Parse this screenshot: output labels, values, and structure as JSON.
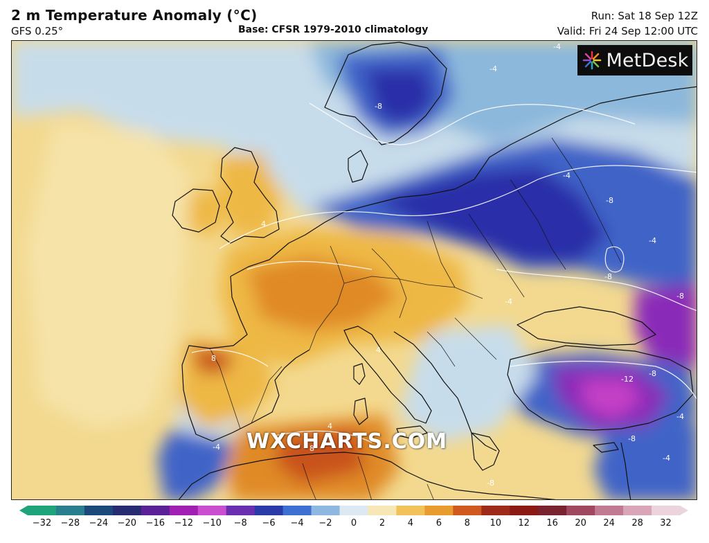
{
  "header": {
    "title": "2 m Temperature Anomaly (°C)",
    "model": "GFS 0.25°",
    "base": "Base: CFSR 1979-2010 climatology",
    "run": "Run: Sat 18 Sep 12Z",
    "valid": "Valid: Fri 24 Sep 12:00 UTC"
  },
  "brand": {
    "name": "MetDesk",
    "icon": "metdesk-star-icon"
  },
  "watermark": "WXCHARTS.COM",
  "map": {
    "contour_labels": [
      "4",
      "-4",
      "-4",
      "-4",
      "-8",
      "-8",
      "-8",
      "-4",
      "-8",
      "-12",
      "-8",
      "-8",
      "-4",
      "-4",
      "-8",
      "4",
      "8",
      "-4",
      "-4",
      "4",
      "8"
    ],
    "colors": {
      "warm_pale": "#f3d98f",
      "warm": "#eeb844",
      "warm_strong": "#e08a26",
      "hot": "#c9521c",
      "cool_pale": "#c7dcea",
      "cool": "#8cb8dc",
      "cold": "#3f63c8",
      "very_cold": "#2b2fa8",
      "extreme_cold": "#8a2bb8",
      "extreme_cold_2": "#c540c6"
    }
  },
  "colorbar": {
    "ticks": [
      "−32",
      "−28",
      "−24",
      "−20",
      "−16",
      "−12",
      "−10",
      "−8",
      "−6",
      "−4",
      "−2",
      "0",
      "2",
      "4",
      "6",
      "8",
      "10",
      "12",
      "16",
      "20",
      "24",
      "28",
      "32"
    ],
    "colors": [
      "#1fa37a",
      "#2a7f8f",
      "#1b4a7a",
      "#272c72",
      "#5a2296",
      "#a11fb2",
      "#c94fd0",
      "#6a2fb0",
      "#2a3aa8",
      "#3e6fd2",
      "#8fb8e0",
      "#dce9f3",
      "#f7e7b6",
      "#f1c25a",
      "#e89b2f",
      "#cf5a1f",
      "#9e2a1a",
      "#8c1a14",
      "#7a2230",
      "#a04860",
      "#c07a92",
      "#d8a6b8",
      "#ecd4dc"
    ]
  }
}
